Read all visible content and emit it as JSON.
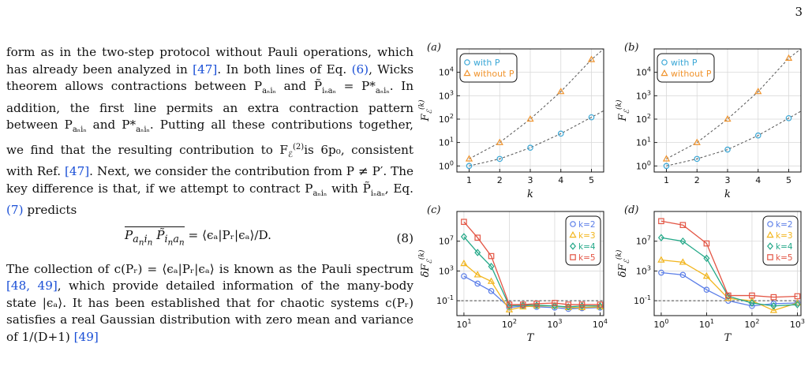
{
  "page_number": "3",
  "text": {
    "para1": [
      {
        "t": "form as in the two-step protocol without Pauli operations, which has already been analyzed in "
      },
      {
        "t": "[47]",
        "cite": true
      },
      {
        "t": ". In both lines of Eq. "
      },
      {
        "t": "(6)",
        "cite": true
      },
      {
        "t": ", Wicks theorem allows contractions between P"
      },
      {
        "t": "aₙiₙ",
        "sub": true
      },
      {
        "t": " and P̃"
      },
      {
        "t": "iₙaₙ",
        "sub": true
      },
      {
        "t": " = P*"
      },
      {
        "t": "aₙiₙ",
        "sub": true
      },
      {
        "t": ". In addition, the first line permits an extra contraction pattern between P"
      },
      {
        "t": "aₙiₙ",
        "sub": true
      },
      {
        "t": " and P*"
      },
      {
        "t": "aₙiₙ",
        "sub": true
      },
      {
        "t": ". Putting all these contributions together, we find that the resulting contribution to F"
      },
      {
        "t": "ℰ",
        "sub": true
      },
      {
        "t": "(2)",
        "sup": true
      },
      {
        "t": "is 6p₀, consistent with Ref. "
      },
      {
        "t": "[47]",
        "cite": true
      },
      {
        "t": ". Next, we consider the contribution from P ≠ P′. The key difference is that, if we attempt to contract P"
      },
      {
        "t": "aₙiₙ",
        "sub": true
      },
      {
        "t": " with P̃"
      },
      {
        "t": "iₙaₙ",
        "sub": true
      },
      {
        "t": ", Eq. "
      },
      {
        "t": "(7)",
        "cite": true
      },
      {
        "t": " predicts"
      }
    ],
    "equation": {
      "lhs": "P_{a_n i_n} P̃_{i_n a_n}",
      "rhs": " = ⟨ϵₐ|Pᵣ|ϵₐ⟩/D.",
      "number": "(8)"
    },
    "para2": [
      {
        "t": "The collection of c(Pᵣ) = ⟨ϵₐ|Pᵣ|ϵₐ⟩ is known as the Pauli spectrum "
      },
      {
        "t": "[48, 49]",
        "cite": true
      },
      {
        "t": ", which provide detailed information of the many-body state |ϵₐ⟩. It has been established that for chaotic systems c(Pᵣ) satisfies a real Gaussian distribution with zero mean and variance of 1/(D+1) "
      },
      {
        "t": "[49]",
        "cite": true
      }
    ]
  },
  "figure": {
    "panels": [
      {
        "label": "(a)",
        "xlabel": "k",
        "ylabel": "F_ℰ^(k)"
      },
      {
        "label": "(b)",
        "xlabel": "k",
        "ylabel": "F_ℰ^(k)"
      },
      {
        "label": "(c)",
        "xlabel": "T",
        "ylabel": "δF_ℰ^(k)"
      },
      {
        "label": "(d)",
        "xlabel": "T",
        "ylabel": "δF_ℰ^(k)"
      }
    ],
    "top_legend": [
      {
        "label": "with P",
        "marker": "circle",
        "color": "#3aa7d6"
      },
      {
        "label": "without P",
        "marker": "triangle",
        "color": "#f0942e"
      }
    ],
    "bottom_legend": [
      {
        "label": "k=2",
        "marker": "circle",
        "color": "#5b7ee8"
      },
      {
        "label": "k=3",
        "marker": "triangle",
        "color": "#f2b51d"
      },
      {
        "label": "k=4",
        "marker": "diamond",
        "color": "#23a888"
      },
      {
        "label": "k=5",
        "marker": "square",
        "color": "#e35544"
      }
    ],
    "top_xticks": [
      "1",
      "2",
      "3",
      "4",
      "5"
    ],
    "top_yticks": [
      "10^0",
      "10^1",
      "10^2",
      "10^3",
      "10^4"
    ],
    "c_xticks": [
      "10^1",
      "10^2",
      "10^3",
      "10^4"
    ],
    "d_xticks": [
      "10^0",
      "10^1",
      "10^2",
      "10^3"
    ],
    "bottom_yticks": [
      "10^-1",
      "10^3",
      "10^7"
    ]
  },
  "chart_data": [
    {
      "type": "scatter",
      "panel": "(a)",
      "xlabel": "k",
      "ylabel": "F_ℰ^(k)",
      "yscale": "log",
      "xlim": [
        0.6,
        5.4
      ],
      "ylim": [
        0.55,
        100000
      ],
      "grid": true,
      "legend_position": "top-left",
      "series": [
        {
          "name": "with P",
          "x": [
            1,
            2,
            3,
            4,
            5
          ],
          "y": [
            1,
            2,
            6,
            24,
            120
          ]
        },
        {
          "name": "without P",
          "x": [
            1,
            2,
            3,
            4,
            5
          ],
          "y": [
            2,
            10,
            100,
            1500,
            35000
          ]
        }
      ]
    },
    {
      "type": "scatter",
      "panel": "(b)",
      "xlabel": "k",
      "ylabel": "F_ℰ^(k)",
      "yscale": "log",
      "xlim": [
        0.6,
        5.4
      ],
      "ylim": [
        0.55,
        100000
      ],
      "grid": true,
      "legend_position": "top-left",
      "series": [
        {
          "name": "with P",
          "x": [
            1,
            2,
            3,
            4,
            5
          ],
          "y": [
            1,
            2,
            5,
            20,
            110
          ]
        },
        {
          "name": "without P",
          "x": [
            1,
            2,
            3,
            4,
            5
          ],
          "y": [
            2,
            10,
            100,
            1500,
            40000
          ]
        }
      ]
    },
    {
      "type": "line",
      "panel": "(c)",
      "xlabel": "T",
      "ylabel": "δF_ℰ^(k)",
      "xscale": "log",
      "yscale": "log",
      "xlim": [
        7,
        12000
      ],
      "ylim": [
        0.001,
        100000000000.0
      ],
      "reference_line": 0.1,
      "grid": true,
      "legend_position": "top-right",
      "x": [
        10,
        20,
        40,
        100,
        200,
        400,
        1000,
        2000,
        4000,
        10000
      ],
      "series": [
        {
          "name": "k=2",
          "y": [
            200,
            20,
            2,
            0.012,
            0.02,
            0.015,
            0.012,
            0.008,
            0.01,
            0.012
          ]
        },
        {
          "name": "k=3",
          "y": [
            10000,
            300,
            40,
            0.006,
            0.015,
            0.02,
            0.02,
            0.012,
            0.012,
            0.015
          ]
        },
        {
          "name": "k=4",
          "y": [
            40000000,
            300000,
            4000,
            0.02,
            0.025,
            0.025,
            0.02,
            0.015,
            0.02,
            0.02
          ]
        },
        {
          "name": "k=5",
          "y": [
            4000000000,
            30000000,
            100000,
            0.03,
            0.03,
            0.04,
            0.05,
            0.03,
            0.03,
            0.03
          ]
        }
      ]
    },
    {
      "type": "line",
      "panel": "(d)",
      "xlabel": "T",
      "ylabel": "δF_ℰ^(k)",
      "xscale": "log",
      "yscale": "log",
      "xlim": [
        0.7,
        1200
      ],
      "ylim": [
        0.001,
        100000000000.0
      ],
      "reference_line": 0.1,
      "grid": true,
      "legend_position": "top-right",
      "x": [
        1,
        3,
        10,
        30,
        100,
        300,
        1000
      ],
      "series": [
        {
          "name": "k=2",
          "y": [
            600,
            300,
            3,
            0.1,
            0.02,
            0.04,
            0.05
          ]
        },
        {
          "name": "k=3",
          "y": [
            30000,
            15000,
            200,
            0.2,
            0.1,
            0.005,
            0.05
          ]
        },
        {
          "name": "k=4",
          "y": [
            30000000,
            10000000,
            50000,
            0.4,
            0.05,
            0.02,
            0.03
          ]
        },
        {
          "name": "k=5",
          "y": [
            5000000000,
            1500000000,
            5000000,
            0.5,
            0.5,
            0.3,
            0.4
          ]
        }
      ]
    }
  ]
}
